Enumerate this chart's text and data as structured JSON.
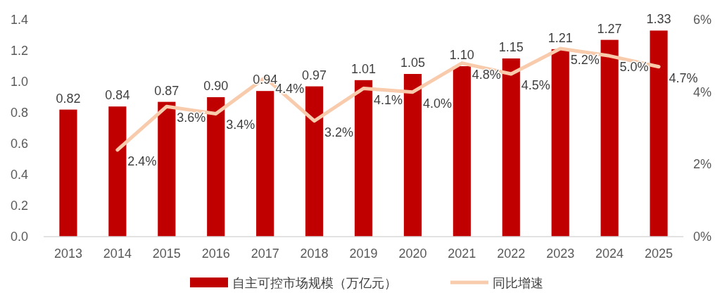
{
  "chart_data": {
    "type": "bar",
    "categories": [
      "2013",
      "2014",
      "2015",
      "2016",
      "2017",
      "2018",
      "2019",
      "2020",
      "2021",
      "2022",
      "2023",
      "2024",
      "2025"
    ],
    "series": [
      {
        "name": "自主可控市场规模（万亿元）",
        "color": "#c00000",
        "values": [
          0.82,
          0.84,
          0.87,
          0.9,
          0.94,
          0.97,
          1.01,
          1.05,
          1.1,
          1.15,
          1.21,
          1.27,
          1.33
        ],
        "value_labels": [
          "0.82",
          "0.84",
          "0.87",
          "0.90",
          "0.94",
          "0.97",
          "1.01",
          "1.05",
          "1.10",
          "1.15",
          "1.21",
          "1.27",
          "1.33"
        ]
      },
      {
        "name": "同比增速",
        "type": "line",
        "axis": "y2",
        "color": "#f8cbad",
        "values": [
          null,
          2.4,
          3.6,
          3.4,
          4.4,
          3.2,
          4.1,
          4.0,
          4.8,
          4.5,
          5.2,
          5.0,
          4.7
        ],
        "value_labels": [
          null,
          "2.4%",
          "3.6%",
          "3.4%",
          "4.4%",
          "3.2%",
          "4.1%",
          "4.0%",
          "4.8%",
          "4.5%",
          "5.2%",
          "5.0%",
          "4.7%"
        ]
      }
    ],
    "ylim": [
      0,
      1.4
    ],
    "yticks": [
      {
        "value": 0,
        "label": "0.0"
      },
      {
        "value": 0.2,
        "label": "0.2"
      },
      {
        "value": 0.4,
        "label": "0.4"
      },
      {
        "value": 0.6,
        "label": "0.6"
      },
      {
        "value": 0.8,
        "label": "0.8"
      },
      {
        "value": 1,
        "label": "1.0"
      },
      {
        "value": 1.2,
        "label": "1.2"
      },
      {
        "value": 1.4,
        "label": "1.4"
      }
    ],
    "y2lim": [
      0,
      6
    ],
    "y2ticks": [
      {
        "value": 0,
        "label": "0%"
      },
      {
        "value": 2,
        "label": "2%"
      },
      {
        "value": 4,
        "label": "4%"
      },
      {
        "value": 6,
        "label": "6%"
      }
    ],
    "grid": false,
    "legend": "bottom"
  }
}
